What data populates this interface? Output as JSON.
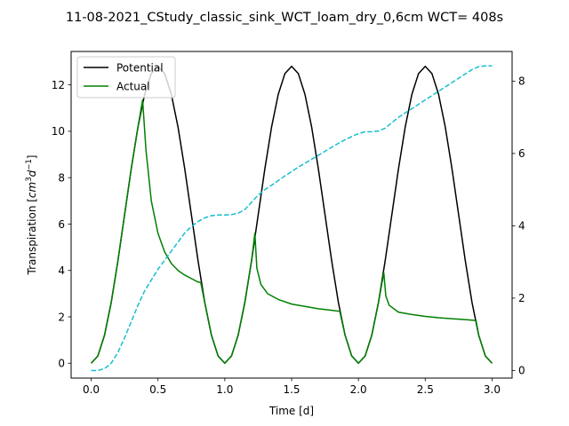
{
  "chart_data": {
    "type": "line",
    "title": "11-08-2021_CStudy_classic_sink_WCT_loam_dry_0,6cm  WCT= 408s",
    "xlabel": "Time [d]",
    "ylabel": "Transpiration [cm³d⁻¹]",
    "ylabel_parts": {
      "prefix": "Transpiration [",
      "unit1": "cm",
      "sup1": "3",
      "unit2": "d",
      "sup2": "−1",
      "suffix": "]"
    },
    "xlim": [
      -0.15,
      3.15
    ],
    "ylim": [
      -0.64,
      13.44
    ],
    "y2lim": [
      -0.21,
      8.82
    ],
    "xticks": [
      0.0,
      0.5,
      1.0,
      1.5,
      2.0,
      2.5,
      3.0
    ],
    "xtick_labels": [
      "0.0",
      "0.5",
      "1.0",
      "1.5",
      "2.0",
      "2.5",
      "3.0"
    ],
    "yticks": [
      0,
      2,
      4,
      6,
      8,
      10,
      12
    ],
    "ytick_labels": [
      "0",
      "2",
      "4",
      "6",
      "8",
      "10",
      "12"
    ],
    "y2ticks": [
      0,
      2,
      4,
      6,
      8
    ],
    "y2tick_labels": [
      "0",
      "2",
      "4",
      "6",
      "8"
    ],
    "legend_position": "top-left",
    "grid": false,
    "series": [
      {
        "name": "Potential",
        "color": "#000000",
        "style": "solid",
        "axis": "left",
        "x": [
          0.0,
          0.05,
          0.1,
          0.15,
          0.2,
          0.25,
          0.3,
          0.35,
          0.4,
          0.45,
          0.5,
          0.55,
          0.6,
          0.65,
          0.7,
          0.75,
          0.8,
          0.85,
          0.9,
          0.95,
          1.0,
          1.05,
          1.1,
          1.15,
          1.2,
          1.25,
          1.3,
          1.35,
          1.4,
          1.45,
          1.5,
          1.55,
          1.6,
          1.65,
          1.7,
          1.75,
          1.8,
          1.85,
          1.9,
          1.95,
          2.0,
          2.05,
          2.1,
          2.15,
          2.2,
          2.25,
          2.3,
          2.35,
          2.4,
          2.45,
          2.5,
          2.55,
          2.6,
          2.65,
          2.7,
          2.75,
          2.8,
          2.85,
          2.9,
          2.95,
          3.0
        ],
        "y": [
          0.0,
          0.31,
          1.21,
          2.62,
          4.41,
          6.4,
          8.39,
          10.18,
          11.59,
          12.49,
          12.8,
          12.49,
          11.59,
          10.18,
          8.39,
          6.4,
          4.41,
          2.62,
          1.21,
          0.31,
          0.0,
          0.31,
          1.21,
          2.62,
          4.41,
          6.4,
          8.39,
          10.18,
          11.59,
          12.49,
          12.8,
          12.49,
          11.59,
          10.18,
          8.39,
          6.4,
          4.41,
          2.62,
          1.21,
          0.31,
          0.0,
          0.31,
          1.21,
          2.62,
          4.41,
          6.4,
          8.39,
          10.18,
          11.59,
          12.49,
          12.8,
          12.49,
          11.59,
          10.18,
          8.39,
          6.4,
          4.41,
          2.62,
          1.21,
          0.31,
          0.0
        ]
      },
      {
        "name": "Actual",
        "color": "#008000",
        "style": "solid",
        "axis": "left",
        "x": [
          0.0,
          0.05,
          0.1,
          0.15,
          0.2,
          0.25,
          0.3,
          0.35,
          0.385,
          0.41,
          0.45,
          0.5,
          0.55,
          0.6,
          0.65,
          0.7,
          0.75,
          0.8,
          0.82,
          0.85,
          0.9,
          0.95,
          1.0,
          1.05,
          1.1,
          1.15,
          1.2,
          1.225,
          1.24,
          1.27,
          1.32,
          1.4,
          1.5,
          1.6,
          1.7,
          1.8,
          1.86,
          1.9,
          1.95,
          2.0,
          2.05,
          2.1,
          2.15,
          2.19,
          2.205,
          2.23,
          2.3,
          2.4,
          2.5,
          2.6,
          2.7,
          2.8,
          2.88,
          2.9,
          2.95,
          3.0
        ],
        "y": [
          0.0,
          0.31,
          1.21,
          2.62,
          4.41,
          6.4,
          8.39,
          10.18,
          11.35,
          9.2,
          7.0,
          5.6,
          4.8,
          4.3,
          4.0,
          3.8,
          3.65,
          3.5,
          3.48,
          2.62,
          1.21,
          0.31,
          0.0,
          0.31,
          1.21,
          2.62,
          4.41,
          5.6,
          4.1,
          3.4,
          3.0,
          2.75,
          2.55,
          2.45,
          2.35,
          2.28,
          2.24,
          1.21,
          0.31,
          0.0,
          0.31,
          1.21,
          2.62,
          3.9,
          2.9,
          2.5,
          2.2,
          2.1,
          2.02,
          1.96,
          1.92,
          1.88,
          1.84,
          1.21,
          0.31,
          0.0
        ]
      },
      {
        "name": "",
        "color": "#17becf",
        "style": "dashed",
        "axis": "right",
        "x": [
          0.0,
          0.05,
          0.1,
          0.15,
          0.2,
          0.25,
          0.3,
          0.35,
          0.4,
          0.45,
          0.5,
          0.55,
          0.6,
          0.65,
          0.7,
          0.75,
          0.8,
          0.85,
          0.9,
          0.95,
          1.0,
          1.05,
          1.1,
          1.15,
          1.2,
          1.25,
          1.3,
          1.35,
          1.4,
          1.45,
          1.5,
          1.55,
          1.6,
          1.65,
          1.7,
          1.75,
          1.8,
          1.85,
          1.9,
          1.95,
          2.0,
          2.05,
          2.1,
          2.15,
          2.2,
          2.25,
          2.3,
          2.35,
          2.4,
          2.45,
          2.5,
          2.55,
          2.6,
          2.65,
          2.7,
          2.75,
          2.8,
          2.85,
          2.9,
          2.95,
          3.0
        ],
        "y": [
          0.0,
          0.0,
          0.05,
          0.2,
          0.5,
          0.9,
          1.35,
          1.8,
          2.2,
          2.5,
          2.8,
          3.05,
          3.3,
          3.55,
          3.8,
          3.98,
          4.12,
          4.22,
          4.28,
          4.3,
          4.3,
          4.31,
          4.35,
          4.45,
          4.65,
          4.85,
          5.0,
          5.12,
          5.25,
          5.38,
          5.5,
          5.62,
          5.73,
          5.84,
          5.95,
          6.06,
          6.17,
          6.28,
          6.38,
          6.47,
          6.55,
          6.6,
          6.6,
          6.62,
          6.7,
          6.85,
          7.0,
          7.12,
          7.24,
          7.36,
          7.48,
          7.6,
          7.72,
          7.84,
          7.96,
          8.08,
          8.2,
          8.32,
          8.4,
          8.42,
          8.42
        ]
      }
    ]
  }
}
